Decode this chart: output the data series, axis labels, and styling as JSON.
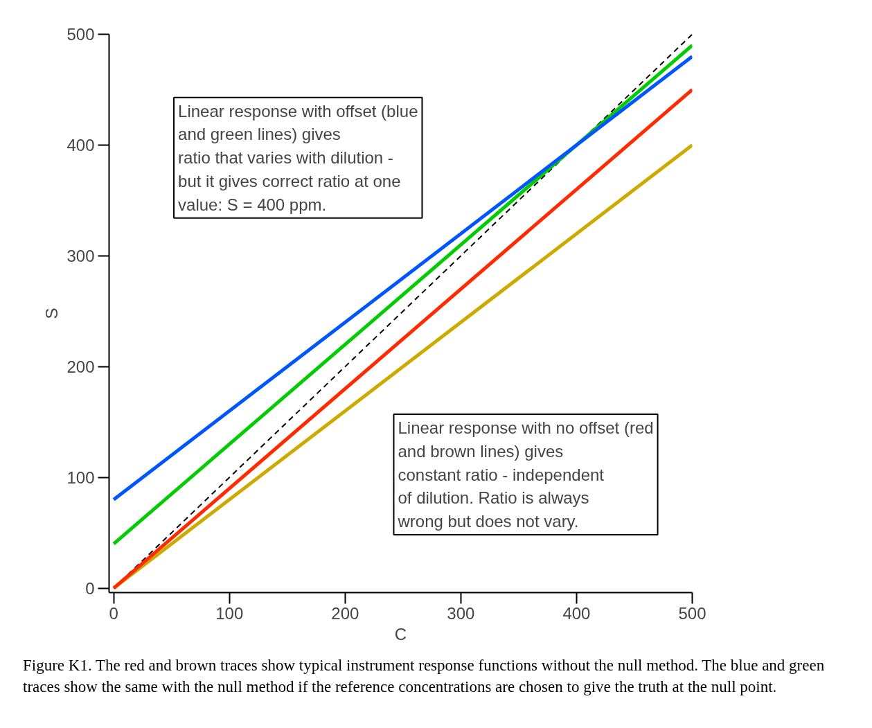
{
  "chart_data": {
    "type": "line",
    "xlabel": "C",
    "ylabel": "S",
    "xlim": [
      -4,
      500
    ],
    "ylim": [
      -4,
      500
    ],
    "xticks": [
      0,
      100,
      200,
      300,
      400,
      500
    ],
    "yticks": [
      0,
      100,
      200,
      300,
      400,
      500
    ],
    "grid": false,
    "line_style": "solid",
    "x": [
      0,
      500
    ],
    "series": [
      {
        "color": "#000000",
        "line_style": "dashed",
        "values": [
          0,
          500
        ]
      },
      {
        "color": "#ccaa00",
        "values": [
          0,
          400
        ]
      },
      {
        "color": "#ff2a00",
        "values": [
          0,
          450
        ]
      },
      {
        "color": "#00cc00",
        "values": [
          40,
          490
        ]
      },
      {
        "color": "#0055ff",
        "values": [
          80,
          480
        ]
      }
    ],
    "annotations": [
      "Linear response with offset (blue\nand green lines) gives\nratio that varies with dilution -\nbut it gives correct ratio at one\nvalue: S = 400 ppm.",
      "Linear response with no offset (red\nand brown lines) gives\nconstant ratio - independent\nof dilution.  Ratio is always\nwrong but does not vary.",
      "Figure K1.  The red and brown traces show typical instrument response functions without the null method.  The blue and green traces show the same with the null method if the reference concentrations are chosen to give the truth at the null point."
    ]
  }
}
